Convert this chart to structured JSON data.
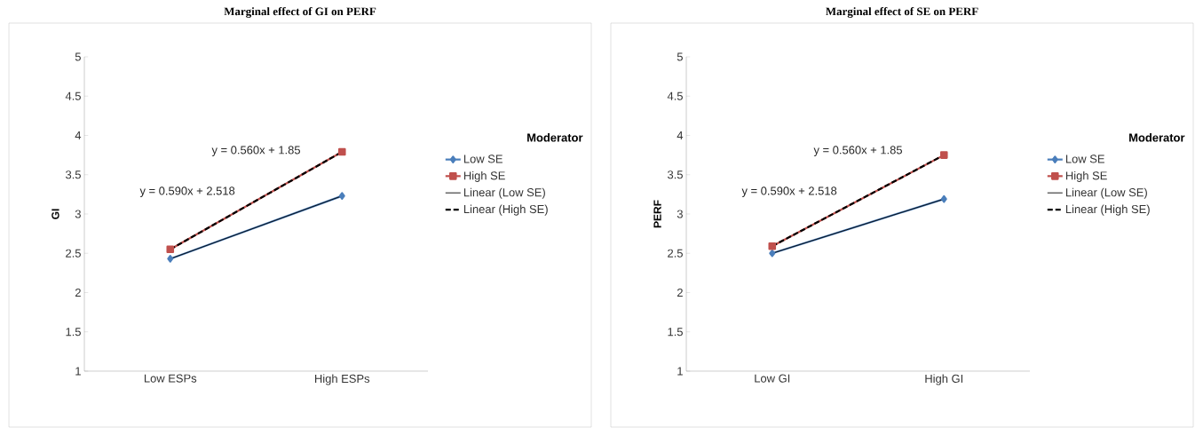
{
  "chart_data": [
    {
      "type": "line",
      "title": "Marginal effect of GI on PERF",
      "ylabel": "GI",
      "categories": [
        "Low ESPs",
        "High ESPs"
      ],
      "legend": "right",
      "legend_title": "Moderator",
      "ylim": [
        1,
        5
      ],
      "yticks": [
        1,
        1.5,
        2,
        2.5,
        3,
        3.5,
        4,
        4.5,
        5
      ],
      "series": [
        {
          "name": "Low SE",
          "color": "#4a7ebb",
          "values": [
            2.43,
            3.23
          ],
          "marker": "diamond",
          "line_style": "solid"
        },
        {
          "name": "High SE",
          "color": "#c0504d",
          "values": [
            2.55,
            3.79
          ],
          "marker": "square",
          "line_style": "solid"
        },
        {
          "name": "Linear (Low SE)",
          "color": "#000000",
          "values": [
            2.43,
            3.23
          ],
          "marker": "none",
          "line_style": "solid"
        },
        {
          "name": "Linear (High SE)",
          "color": "#000000",
          "values": [
            2.55,
            3.79
          ],
          "marker": "none",
          "line_style": "dashed"
        }
      ],
      "annotations": [
        "y = 0.560x + 1.85",
        "y = 0.590x + 2.518"
      ]
    },
    {
      "type": "line",
      "title": "Marginal effect of SE on PERF",
      "ylabel": "PERF",
      "categories": [
        "Low GI",
        "High GI"
      ],
      "legend": "right",
      "legend_title": "Moderator",
      "ylim": [
        1,
        5
      ],
      "yticks": [
        1,
        1.5,
        2,
        2.5,
        3,
        3.5,
        4,
        4.5,
        5
      ],
      "series": [
        {
          "name": "Low SE",
          "color": "#4a7ebb",
          "values": [
            2.5,
            3.19
          ],
          "marker": "diamond",
          "line_style": "solid"
        },
        {
          "name": "High SE",
          "color": "#c0504d",
          "values": [
            2.59,
            3.75
          ],
          "marker": "square",
          "line_style": "solid"
        },
        {
          "name": "Linear (Low SE)",
          "color": "#000000",
          "values": [
            2.5,
            3.19
          ],
          "marker": "none",
          "line_style": "solid"
        },
        {
          "name": "Linear (High SE)",
          "color": "#000000",
          "values": [
            2.59,
            3.75
          ],
          "marker": "none",
          "line_style": "dashed"
        }
      ],
      "annotations": [
        "y = 0.560x + 1.85",
        "y = 0.590x + 2.518"
      ]
    }
  ]
}
